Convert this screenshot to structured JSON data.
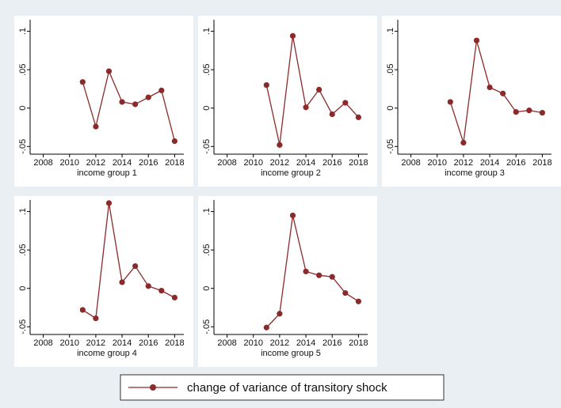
{
  "chart_data": [
    {
      "type": "line",
      "xlabel": "income group 1",
      "x": [
        2011,
        2012,
        2013,
        2014,
        2015,
        2016,
        2017,
        2018
      ],
      "series": [
        {
          "color": "#8b2a2a",
          "values": [
            0.034,
            -0.024,
            0.048,
            0.008,
            0.005,
            0.014,
            0.023,
            -0.043
          ]
        }
      ],
      "xlim": [
        2007,
        2018.7
      ],
      "ylim": [
        -0.06,
        0.115
      ],
      "xticks": [
        2008,
        2010,
        2012,
        2014,
        2016,
        2018
      ],
      "yticks": [
        {
          "value": -0.05,
          "label": "-.05"
        },
        0,
        {
          "value": 0.05,
          "label": ".05"
        },
        {
          "value": 0.1,
          "label": ".1"
        }
      ]
    },
    {
      "type": "line",
      "xlabel": "income group 2",
      "x": [
        2011,
        2012,
        2013,
        2014,
        2015,
        2016,
        2017,
        2018
      ],
      "series": [
        {
          "color": "#8b2a2a",
          "values": [
            0.03,
            -0.048,
            0.094,
            0.001,
            0.024,
            -0.008,
            0.007,
            -0.012
          ]
        }
      ],
      "xlim": [
        2007,
        2018.7
      ],
      "ylim": [
        -0.06,
        0.115
      ],
      "xticks": [
        2008,
        2010,
        2012,
        2014,
        2016,
        2018
      ],
      "yticks": [
        {
          "value": -0.05,
          "label": "-.05"
        },
        0,
        {
          "value": 0.05,
          "label": ".05"
        },
        {
          "value": 0.1,
          "label": ".1"
        }
      ]
    },
    {
      "type": "line",
      "xlabel": "income group 3",
      "x": [
        2011,
        2012,
        2013,
        2014,
        2015,
        2016,
        2017,
        2018
      ],
      "series": [
        {
          "color": "#8b2a2a",
          "values": [
            0.008,
            -0.045,
            0.088,
            0.027,
            0.019,
            -0.005,
            -0.003,
            -0.006
          ]
        }
      ],
      "xlim": [
        2007,
        2018.7
      ],
      "ylim": [
        -0.06,
        0.115
      ],
      "xticks": [
        2008,
        2010,
        2012,
        2014,
        2016,
        2018
      ],
      "yticks": [
        {
          "value": -0.05,
          "label": "-.05"
        },
        0,
        {
          "value": 0.05,
          "label": ".05"
        },
        {
          "value": 0.1,
          "label": ".1"
        }
      ]
    },
    {
      "type": "line",
      "xlabel": "income group 4",
      "x": [
        2011,
        2012,
        2013,
        2014,
        2015,
        2016,
        2017,
        2018
      ],
      "series": [
        {
          "color": "#8b2a2a",
          "values": [
            -0.028,
            -0.039,
            0.111,
            0.008,
            0.029,
            0.003,
            -0.003,
            -0.012
          ]
        }
      ],
      "xlim": [
        2007,
        2018.7
      ],
      "ylim": [
        -0.06,
        0.115
      ],
      "xticks": [
        2008,
        2010,
        2012,
        2014,
        2016,
        2018
      ],
      "yticks": [
        {
          "value": -0.05,
          "label": "-.05"
        },
        0,
        {
          "value": 0.05,
          "label": ".05"
        },
        {
          "value": 0.1,
          "label": ".1"
        }
      ]
    },
    {
      "type": "line",
      "xlabel": "income group 5",
      "x": [
        2011,
        2012,
        2013,
        2014,
        2015,
        2016,
        2017,
        2018
      ],
      "series": [
        {
          "color": "#8b2a2a",
          "values": [
            -0.051,
            -0.033,
            0.095,
            0.022,
            0.017,
            0.015,
            -0.006,
            -0.017
          ]
        }
      ],
      "xlim": [
        2007,
        2018.7
      ],
      "ylim": [
        -0.06,
        0.115
      ],
      "xticks": [
        2008,
        2010,
        2012,
        2014,
        2016,
        2018
      ],
      "yticks": [
        {
          "value": -0.05,
          "label": "-.05"
        },
        0,
        {
          "value": 0.05,
          "label": ".05"
        },
        {
          "value": 0.1,
          "label": ".1"
        }
      ]
    }
  ],
  "legend": {
    "name": "change of variance of transitory shock",
    "color": "#8b2a2a"
  }
}
